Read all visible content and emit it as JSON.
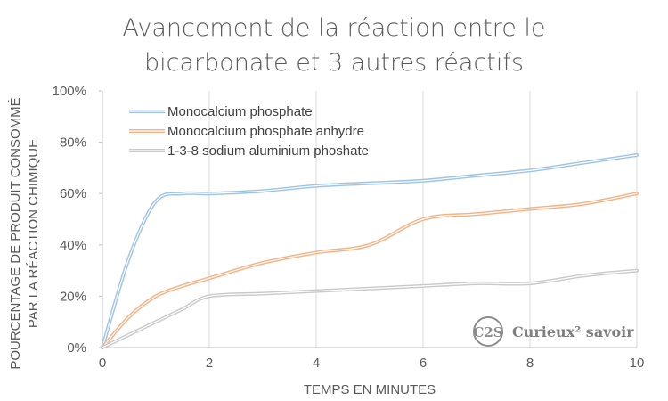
{
  "chart_data": {
    "type": "line",
    "title_line1": "Avancement de la réaction entre le",
    "title_line2": "bicarbonate et 3 autres réactifs",
    "xlabel": "TEMPS EN MINUTES",
    "ylabel_line1": "POURCENTAGE DE PRODUIT CONSOMMÉ",
    "ylabel_line2": "PAR LA RÉACTION CHIMIQUE",
    "xlim": [
      0,
      10
    ],
    "ylim": [
      0,
      100
    ],
    "x_ticks": [
      "0",
      "2",
      "4",
      "6",
      "8",
      "10"
    ],
    "y_ticks": [
      "0%",
      "20%",
      "40%",
      "60%",
      "80%",
      "100%"
    ],
    "grid": "vertical",
    "legend_position": "top-left",
    "series": [
      {
        "name": "Monocalcium phosphate",
        "color": "#9dc3e6",
        "x": [
          0,
          0.5,
          1,
          1.5,
          2,
          3,
          4,
          5,
          6,
          7,
          8,
          9,
          10
        ],
        "y": [
          0,
          35,
          57,
          60,
          60,
          61,
          63,
          64,
          65,
          67,
          69,
          72,
          75
        ]
      },
      {
        "name": "Monocalcium phosphate anhydre",
        "color": "#f4b183",
        "x": [
          0,
          0.5,
          1,
          1.5,
          2,
          3,
          4,
          5,
          6,
          7,
          8,
          9,
          10
        ],
        "y": [
          0,
          12,
          20,
          24,
          27,
          33,
          37,
          40,
          50,
          52,
          54,
          56,
          60
        ]
      },
      {
        "name": "1-3-8 sodium aluminium phoshate",
        "color": "#c9c9c9",
        "x": [
          0,
          0.5,
          1,
          1.5,
          2,
          3,
          4,
          5,
          6,
          7,
          8,
          9,
          10
        ],
        "y": [
          0,
          5,
          10,
          15,
          20,
          21,
          22,
          23,
          24,
          25,
          25,
          28,
          30
        ]
      }
    ]
  },
  "watermark": {
    "badge": "C2S",
    "text": "Curieux² savoir"
  }
}
